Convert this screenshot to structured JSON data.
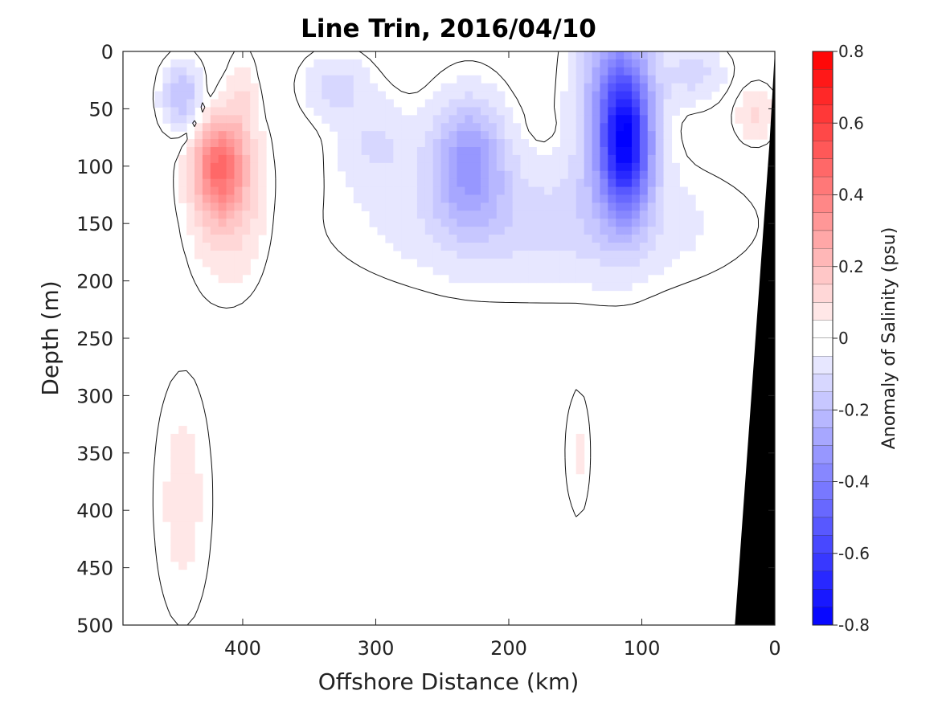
{
  "chart_data": {
    "type": "heatmap",
    "title": "Line Trin, 2016/04/10",
    "xlabel": "Offshore Distance (km)",
    "ylabel": "Depth (m)",
    "colorbar_label": "Anomaly of Salinity (psu)",
    "xlim": [
      490,
      0
    ],
    "ylim": [
      0,
      500
    ],
    "y_reversed": true,
    "x_ticks": [
      400,
      300,
      200,
      100,
      0
    ],
    "x_tick_labels": [
      "400",
      "300",
      "200",
      "100",
      "0"
    ],
    "y_ticks": [
      0,
      50,
      100,
      150,
      200,
      250,
      300,
      350,
      400,
      450,
      500
    ],
    "y_tick_labels": [
      "0",
      "50",
      "100",
      "150",
      "200",
      "250",
      "300",
      "350",
      "400",
      "450",
      "500"
    ],
    "colorbar_range": [
      -0.8,
      0.8
    ],
    "colorbar_step": 0.05,
    "colorbar_ticks": [
      0.8,
      0.6,
      0.4,
      0.2,
      0,
      -0.2,
      -0.4,
      -0.6,
      -0.8
    ],
    "colorbar_tick_labels": [
      "0.8",
      "0.6",
      "0.4",
      "0.2",
      "0",
      "-0.2",
      "-0.4",
      "-0.6",
      "-0.8"
    ],
    "colormap": {
      "negative": "#0000ff",
      "zero": "#ffffff",
      "positive": "#ff0000"
    },
    "bathymetry_color": "#000000",
    "contour_levels": [
      0
    ],
    "features": [
      {
        "center": [
          112,
          80
        ],
        "radius": [
          18,
          60
        ],
        "value": -0.6
      },
      {
        "center": [
          120,
          40
        ],
        "radius": [
          28,
          90
        ],
        "value": -0.3
      },
      {
        "center": [
          230,
          95
        ],
        "radius": [
          28,
          55
        ],
        "value": -0.3
      },
      {
        "center": [
          175,
          150
        ],
        "radius": [
          130,
          55
        ],
        "value": -0.12
      },
      {
        "center": [
          445,
          40
        ],
        "radius": [
          15,
          30
        ],
        "value": -0.22
      },
      {
        "center": [
          330,
          30
        ],
        "radius": [
          25,
          28
        ],
        "value": -0.12
      },
      {
        "center": [
          300,
          80
        ],
        "radius": [
          30,
          40
        ],
        "value": -0.1
      },
      {
        "center": [
          60,
          20
        ],
        "radius": [
          25,
          25
        ],
        "value": -0.12
      },
      {
        "center": [
          418,
          100
        ],
        "radius": [
          18,
          40
        ],
        "value": 0.38
      },
      {
        "center": [
          410,
          130
        ],
        "radius": [
          28,
          70
        ],
        "value": 0.15
      },
      {
        "center": [
          400,
          40
        ],
        "radius": [
          10,
          40
        ],
        "value": 0.08
      },
      {
        "center": [
          15,
          55
        ],
        "radius": [
          15,
          25
        ],
        "value": 0.12
      },
      {
        "center": [
          148,
          350
        ],
        "radius": [
          10,
          60
        ],
        "value": 0.06
      },
      {
        "center": [
          175,
          65
        ],
        "radius": [
          8,
          10
        ],
        "value": 0.05
      },
      {
        "center": [
          445,
          390
        ],
        "radius": [
          22,
          110
        ],
        "value": 0.07
      }
    ]
  }
}
